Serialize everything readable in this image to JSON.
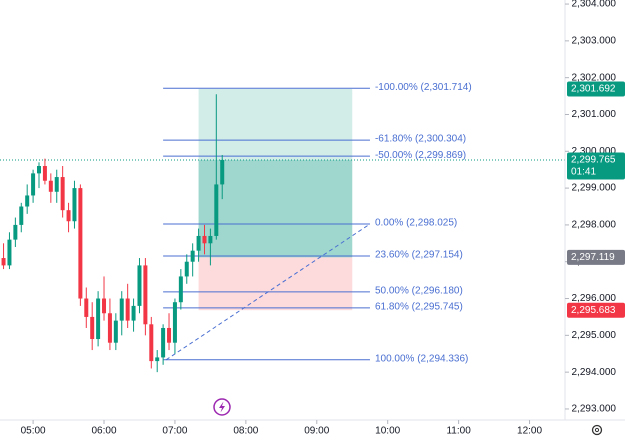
{
  "chart_data": {
    "type": "candlestick",
    "x": [
      "04:35",
      "04:40",
      "04:45",
      "04:50",
      "04:55",
      "05:00",
      "05:05",
      "05:10",
      "05:15",
      "05:20",
      "05:25",
      "05:30",
      "05:35",
      "05:40",
      "05:45",
      "05:50",
      "05:55",
      "06:00",
      "06:05",
      "06:10",
      "06:15",
      "06:20",
      "06:25",
      "06:30",
      "06:35",
      "06:40",
      "06:45",
      "06:50",
      "06:55",
      "07:00",
      "07:05",
      "07:10",
      "07:15",
      "07:20",
      "07:25",
      "07:30",
      "07:35",
      "07:40"
    ],
    "open": [
      2297.1,
      2296.9,
      2297.6,
      2298.0,
      2298.5,
      2298.8,
      2299.4,
      2299.6,
      2299.2,
      2298.9,
      2299.3,
      2298.4,
      2298.1,
      2299.0,
      2296.0,
      2295.5,
      2294.9,
      2296.0,
      2295.6,
      2294.8,
      2295.4,
      2296.0,
      2295.4,
      2295.8,
      2296.9,
      2295.3,
      2294.3,
      2294.4,
      2295.2,
      2294.8,
      2295.9,
      2296.6,
      2297.0,
      2297.3,
      2297.7,
      2297.5,
      2297.7,
      2299.1
    ],
    "high": [
      2297.5,
      2297.8,
      2298.2,
      2298.6,
      2299.1,
      2299.5,
      2299.7,
      2299.8,
      2299.4,
      2299.5,
      2299.6,
      2298.6,
      2299.2,
      2299.1,
      2296.3,
      2295.9,
      2296.2,
      2296.6,
      2296.0,
      2295.6,
      2296.2,
      2296.4,
      2296.0,
      2297.1,
      2297.1,
      2295.5,
      2294.6,
      2295.3,
      2295.6,
      2296.0,
      2296.8,
      2297.2,
      2297.5,
      2297.9,
      2298.0,
      2297.9,
      2301.55,
      2299.9
    ],
    "low": [
      2296.8,
      2296.8,
      2297.4,
      2297.8,
      2298.3,
      2298.6,
      2299.0,
      2299.1,
      2298.6,
      2298.6,
      2298.2,
      2297.8,
      2297.9,
      2295.8,
      2295.2,
      2294.6,
      2294.7,
      2295.4,
      2294.6,
      2294.6,
      2295.0,
      2295.2,
      2295.1,
      2295.6,
      2295.0,
      2294.1,
      2294.0,
      2294.2,
      2294.6,
      2294.5,
      2295.7,
      2296.4,
      2296.6,
      2297.0,
      2297.2,
      2296.9,
      2297.6,
      2298.7
    ],
    "close": [
      2296.9,
      2297.6,
      2298.0,
      2298.5,
      2298.8,
      2299.4,
      2299.6,
      2299.2,
      2298.9,
      2299.3,
      2298.4,
      2298.1,
      2299.0,
      2296.0,
      2295.5,
      2294.9,
      2296.0,
      2295.6,
      2294.8,
      2295.4,
      2296.0,
      2295.4,
      2295.8,
      2296.9,
      2295.3,
      2294.3,
      2294.4,
      2295.2,
      2294.8,
      2295.9,
      2296.6,
      2297.0,
      2297.3,
      2297.7,
      2297.5,
      2297.7,
      2299.1,
      2299.765
    ],
    "up_color": "#089981",
    "down_color": "#f23645",
    "xlim": [
      "04:32",
      "12:30"
    ],
    "xticks": [
      "05:00",
      "06:00",
      "07:00",
      "08:00",
      "09:00",
      "10:00",
      "11:00",
      "12:00"
    ],
    "ylim": [
      2292.7,
      2304.11
    ],
    "yticks": [
      {
        "value": 2293,
        "label": "2,293.000"
      },
      {
        "value": 2294,
        "label": "2,294.000"
      },
      {
        "value": 2295,
        "label": "2,295.000"
      },
      {
        "value": 2296,
        "label": "2,296.000"
      },
      {
        "value": 2297,
        "label": "2,297.000"
      },
      {
        "value": 2298,
        "label": "2,298.000"
      },
      {
        "value": 2299,
        "label": "2,299.000"
      },
      {
        "value": 2300,
        "label": "2,300.000"
      },
      {
        "value": 2301,
        "label": "2,301.000"
      },
      {
        "value": 2302,
        "label": "2,302.000"
      },
      {
        "value": 2303,
        "label": "2,303.000"
      },
      {
        "value": 2304,
        "label": "2,304.000"
      }
    ],
    "fibonacci": {
      "start": "06:50",
      "end": "09:45",
      "color": "#4a6fd1",
      "levels": [
        {
          "value": 2301.714,
          "label": "-100.00% (2,301.714)"
        },
        {
          "value": 2300.304,
          "label": "-61.80% (2,300.304)"
        },
        {
          "value": 2299.869,
          "label": "-50.00% (2,299.869)"
        },
        {
          "value": 2298.025,
          "label": "0.00% (2,298.025)"
        },
        {
          "value": 2297.154,
          "label": "23.60% (2,297.154)"
        },
        {
          "value": 2296.18,
          "label": "50.00% (2,296.180)"
        },
        {
          "value": 2295.745,
          "label": "61.80% (2,295.745)"
        },
        {
          "value": 2294.336,
          "label": "100.00% (2,294.336)"
        }
      ]
    },
    "position": {
      "start": "07:20",
      "end": "09:30",
      "target": {
        "value": 2301.692,
        "label": "2,301.692"
      },
      "entry": {
        "value": 2297.119,
        "label": "2,297.119"
      },
      "stop": {
        "value": 2295.683,
        "label": "2,295.683"
      }
    },
    "last_price": {
      "value": 2299.765,
      "label": "2,299.765",
      "countdown": "01:41"
    }
  }
}
